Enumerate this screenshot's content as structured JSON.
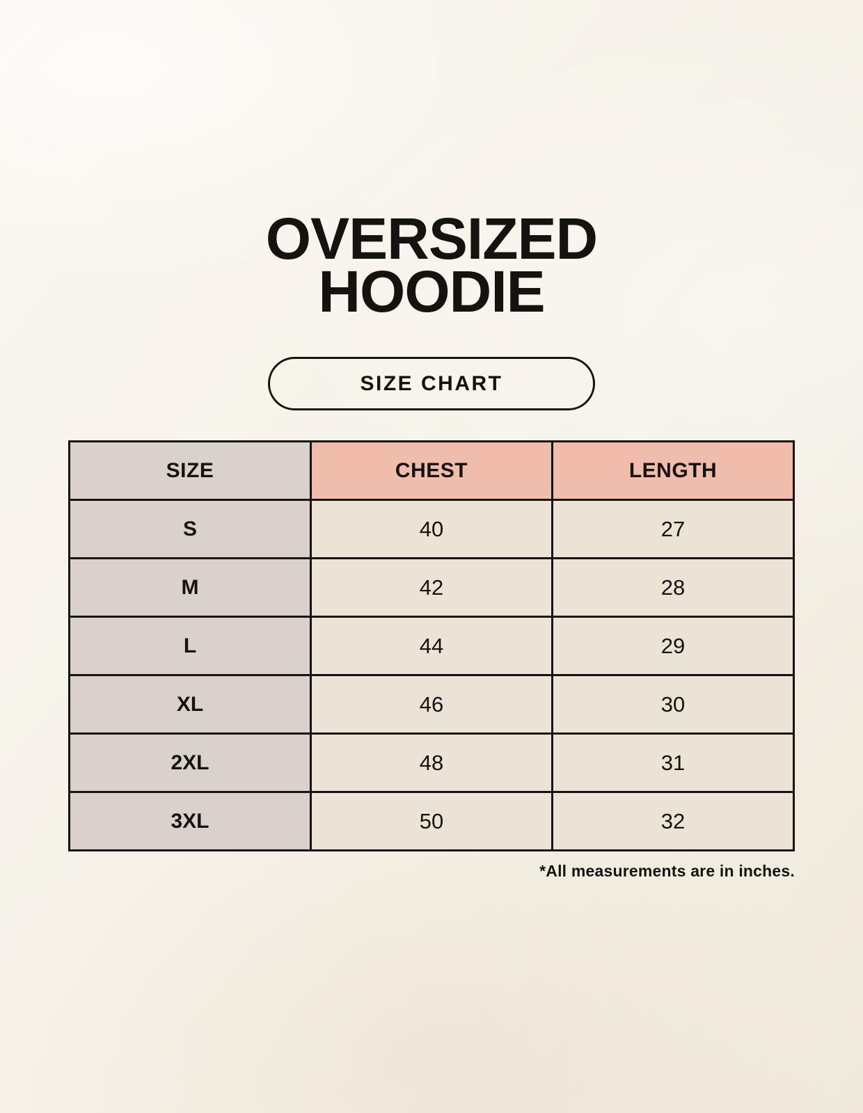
{
  "header": {
    "title_line1": "OVERSIZED",
    "title_line2": "HOODIE",
    "size_chart_label": "SIZE CHART"
  },
  "chart_data": {
    "type": "table",
    "title": "OVERSIZED HOODIE",
    "subtitle": "SIZE CHART",
    "columns": [
      "SIZE",
      "CHEST",
      "LENGTH"
    ],
    "rows": [
      [
        "S",
        40,
        27
      ],
      [
        "M",
        42,
        28
      ],
      [
        "L",
        44,
        29
      ],
      [
        "XL",
        46,
        30
      ],
      [
        "2XL",
        48,
        31
      ],
      [
        "3XL",
        50,
        32
      ]
    ],
    "note": "*All measurements are in inches.",
    "units": "inches"
  },
  "colors": {
    "background_top": "#faf7f0",
    "background_bottom": "#eee9dc",
    "size_column_bg": "#d9d2cc",
    "measure_header_bg": "#f0bcab",
    "value_cell_bg": "#eae3d6",
    "border": "#161412",
    "text": "#151310"
  }
}
